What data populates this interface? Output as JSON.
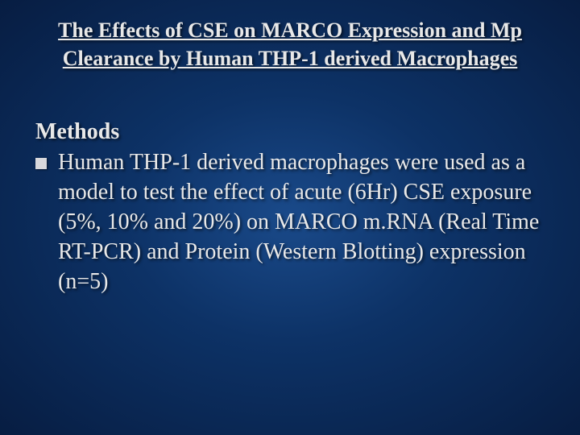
{
  "background": {
    "gradient_center": "#1a4a8a",
    "gradient_mid": "#0d3266",
    "gradient_edge": "#071d42"
  },
  "title": "The Effects of CSE on MARCO Expression and Mp Clearance by Human THP-1 derived Macrophages",
  "section_heading": "Methods",
  "bullets": [
    "Human THP-1 derived macrophages were used as a model to test the effect of acute (6Hr) CSE exposure (5%, 10% and 20%) on MARCO m.RNA (Real Time RT-PCR) and Protein (Western Blotting) expression (n=5)"
  ],
  "typography": {
    "title_fontsize": 26,
    "body_fontsize": 28,
    "font_family": "Georgia, Times New Roman, serif",
    "text_color": "#e8e8e8",
    "bullet_marker_color": "#d8d8dc"
  }
}
